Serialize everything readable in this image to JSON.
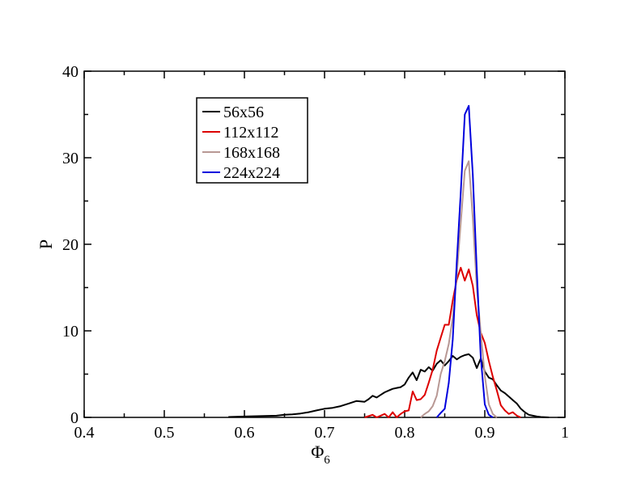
{
  "chart_data": {
    "type": "line",
    "xlabel": "Φ",
    "xlabel_subscript": "6",
    "ylabel": "P",
    "xlim": [
      0.4,
      1.0
    ],
    "ylim": [
      0,
      40
    ],
    "x_ticks": [
      "0.4",
      "0.5",
      "0.6",
      "0.7",
      "0.8",
      "0.9",
      "1"
    ],
    "y_ticks": [
      "0",
      "10",
      "20",
      "30",
      "40"
    ],
    "grid": false,
    "legend_position": "top-left",
    "series": [
      {
        "name": "56x56",
        "color": "#000000",
        "x": [
          0.58,
          0.6,
          0.62,
          0.64,
          0.65,
          0.66,
          0.67,
          0.68,
          0.69,
          0.7,
          0.71,
          0.72,
          0.73,
          0.74,
          0.75,
          0.755,
          0.76,
          0.765,
          0.77,
          0.775,
          0.78,
          0.785,
          0.79,
          0.795,
          0.8,
          0.805,
          0.81,
          0.815,
          0.82,
          0.825,
          0.83,
          0.835,
          0.84,
          0.845,
          0.85,
          0.855,
          0.86,
          0.865,
          0.87,
          0.875,
          0.88,
          0.885,
          0.89,
          0.895,
          0.9,
          0.905,
          0.91,
          0.915,
          0.92,
          0.925,
          0.93,
          0.935,
          0.94,
          0.945,
          0.95,
          0.955,
          0.96,
          0.965,
          0.97,
          0.98
        ],
        "y": [
          0.05,
          0.1,
          0.15,
          0.2,
          0.3,
          0.35,
          0.45,
          0.6,
          0.8,
          1.0,
          1.1,
          1.3,
          1.6,
          1.9,
          1.8,
          2.1,
          2.5,
          2.3,
          2.6,
          2.9,
          3.1,
          3.3,
          3.4,
          3.5,
          3.8,
          4.6,
          5.2,
          4.3,
          5.5,
          5.3,
          5.8,
          5.4,
          6.2,
          6.6,
          6.0,
          6.5,
          7.1,
          6.7,
          7.0,
          7.2,
          7.3,
          6.9,
          5.7,
          6.8,
          5.3,
          4.6,
          4.4,
          3.7,
          3.1,
          2.8,
          2.4,
          2.0,
          1.6,
          1.0,
          0.6,
          0.3,
          0.2,
          0.1,
          0.05,
          0.0
        ]
      },
      {
        "name": "112x112",
        "color": "#dd0000",
        "x": [
          0.75,
          0.76,
          0.765,
          0.77,
          0.775,
          0.78,
          0.785,
          0.79,
          0.795,
          0.8,
          0.805,
          0.81,
          0.815,
          0.82,
          0.825,
          0.83,
          0.835,
          0.84,
          0.845,
          0.85,
          0.855,
          0.86,
          0.865,
          0.87,
          0.875,
          0.88,
          0.885,
          0.89,
          0.895,
          0.9,
          0.905,
          0.91,
          0.915,
          0.92,
          0.925,
          0.93,
          0.935,
          0.94,
          0.945
        ],
        "y": [
          0.0,
          0.3,
          0.0,
          0.2,
          0.4,
          0.0,
          0.6,
          0.0,
          0.4,
          0.7,
          0.8,
          3.0,
          2.0,
          2.1,
          2.6,
          4.0,
          5.5,
          7.7,
          9.2,
          10.7,
          10.7,
          13.5,
          15.9,
          17.3,
          15.8,
          17.1,
          15.2,
          11.8,
          9.8,
          8.6,
          6.5,
          4.7,
          3.1,
          1.4,
          0.8,
          0.4,
          0.6,
          0.2,
          0.0
        ]
      },
      {
        "name": "168x168",
        "color": "#b89894",
        "x": [
          0.82,
          0.825,
          0.83,
          0.835,
          0.84,
          0.845,
          0.85,
          0.855,
          0.86,
          0.865,
          0.87,
          0.875,
          0.88,
          0.885,
          0.89,
          0.895,
          0.9,
          0.905,
          0.91,
          0.915
        ],
        "y": [
          0.0,
          0.4,
          0.7,
          1.3,
          2.5,
          5.0,
          6.5,
          8.5,
          11.5,
          16.5,
          22.5,
          28.5,
          29.6,
          23.0,
          15.0,
          9.8,
          4.8,
          1.5,
          0.4,
          0.0
        ]
      },
      {
        "name": "224x224",
        "color": "#0000dd",
        "x": [
          0.84,
          0.845,
          0.85,
          0.855,
          0.86,
          0.865,
          0.87,
          0.875,
          0.88,
          0.885,
          0.89,
          0.895,
          0.9,
          0.905,
          0.91
        ],
        "y": [
          0.0,
          0.5,
          1.0,
          4.0,
          9.0,
          18.0,
          26.0,
          35.0,
          36.0,
          28.0,
          17.0,
          7.0,
          1.5,
          0.3,
          0.0
        ]
      }
    ]
  }
}
